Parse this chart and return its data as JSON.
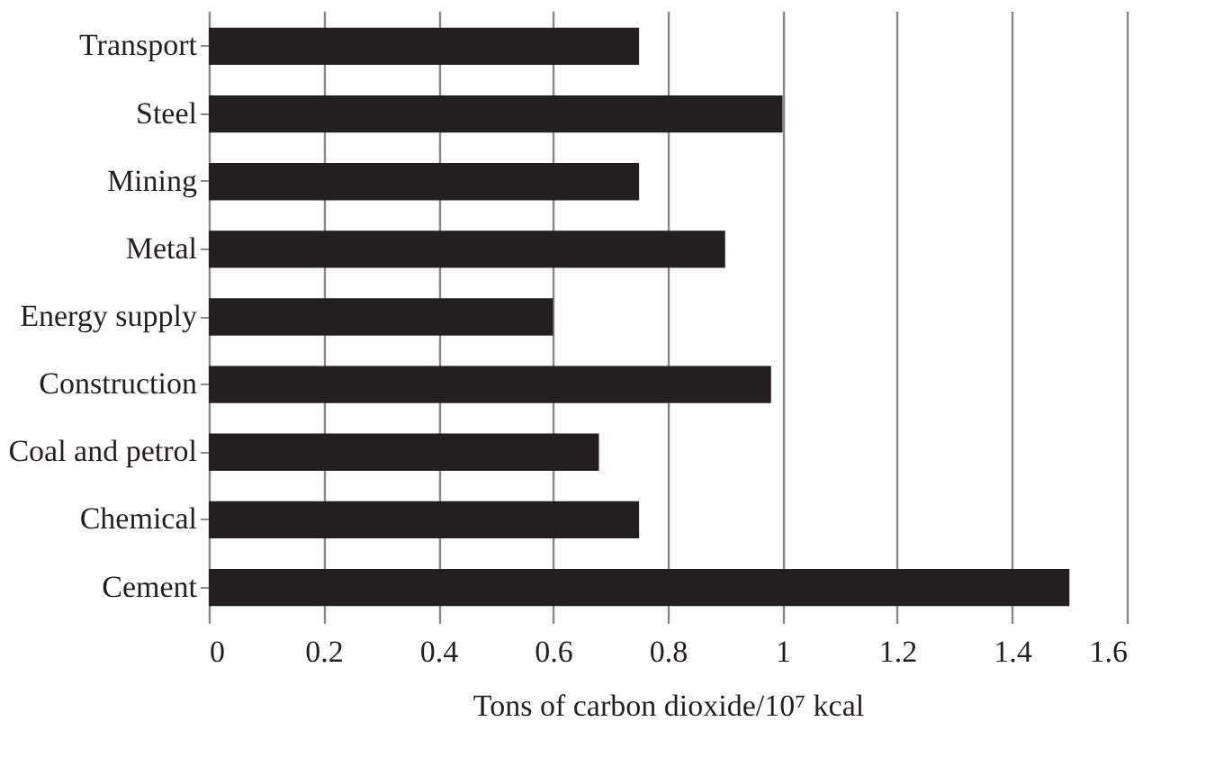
{
  "chart_data": {
    "type": "bar",
    "orientation": "horizontal",
    "xlabel": "Tons of carbon dioxide/10⁷ kcal",
    "categories": [
      "Transport",
      "Steel",
      "Mining",
      "Metal",
      "Energy supply",
      "Construction",
      "Coal and petrol",
      "Chemical",
      "Cement"
    ],
    "values": [
      0.75,
      1.0,
      0.75,
      0.9,
      0.6,
      0.98,
      0.68,
      0.75,
      1.5
    ],
    "color": "#231f20",
    "xlim": [
      0,
      1.6
    ],
    "xticks": [
      0,
      0.2,
      0.4,
      0.6,
      0.8,
      1,
      1.2,
      1.4,
      1.6
    ],
    "grid": "x"
  }
}
